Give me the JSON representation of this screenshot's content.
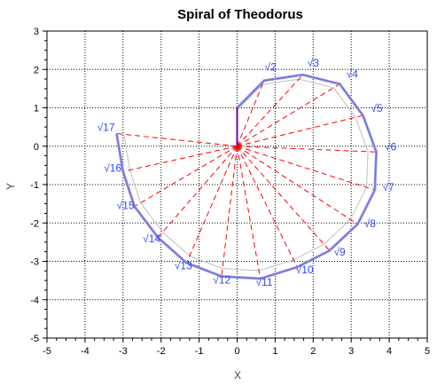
{
  "chart_data": {
    "type": "line",
    "title": "Spiral of Theodorus",
    "xlabel": "X",
    "ylabel": "Y",
    "xlim": [
      -5,
      5
    ],
    "ylim": [
      -5,
      3
    ],
    "xticks": [
      -5,
      -4,
      -3,
      -2,
      -1,
      0,
      1,
      2,
      3,
      4,
      5
    ],
    "yticks": [
      -5,
      -4,
      -3,
      -2,
      -1,
      0,
      1,
      2,
      3
    ],
    "grid": "dotted",
    "series": [
      {
        "role": "spiral outline",
        "points": [
          [
            0,
            1
          ],
          [
            0.71,
            1.71
          ],
          [
            1.73,
            1.86
          ],
          [
            2.7,
            1.62
          ],
          [
            3.31,
            0.8
          ],
          [
            3.66,
            -0.15
          ],
          [
            3.62,
            -1.14
          ],
          [
            3.17,
            -2.03
          ],
          [
            2.43,
            -2.72
          ],
          [
            1.58,
            -3.15
          ],
          [
            0.61,
            -3.45
          ],
          [
            -0.41,
            -3.39
          ],
          [
            -1.33,
            -3.04
          ],
          [
            -2.08,
            -2.38
          ],
          [
            -2.7,
            -1.57
          ],
          [
            -3.0,
            -0.66
          ],
          [
            -3.17,
            0.33
          ]
        ]
      }
    ],
    "labels": [
      "√2",
      "√3",
      "√4",
      "√5",
      "√6",
      "√7",
      "√8",
      "√9",
      "√10",
      "√11",
      "√12",
      "√13",
      "√14",
      "√15",
      "√16",
      "√17"
    ],
    "colors": {
      "spiral": "#6f6fd6",
      "hypotenuse": "#ff0000",
      "label": "#3344ff",
      "smooth": "#c0c0c0",
      "first_leg": "#7700aa"
    }
  }
}
